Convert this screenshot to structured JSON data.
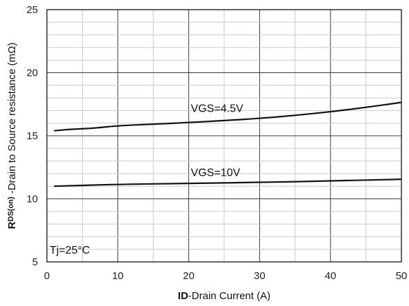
{
  "chart_data": {
    "type": "line",
    "xlabel": {
      "bold": "ID",
      "rest": "-Drain Current (A)"
    },
    "ylabel": {
      "bold": "R",
      "sub": "DS(on)",
      "rest": " -Drain to Source resistance (mΩ)"
    },
    "xlim": [
      0,
      50
    ],
    "ylim": [
      5,
      25
    ],
    "x_ticks": [
      0,
      10,
      20,
      30,
      40,
      50
    ],
    "y_ticks": [
      5,
      10,
      15,
      20,
      25
    ],
    "x_minor_step": 5,
    "y_minor_step": 1,
    "grid": true,
    "condition_text": "Tj=25°C",
    "series": [
      {
        "name": "VGS=4.5V",
        "x": [
          1,
          3,
          5,
          7,
          10,
          15,
          20,
          25,
          30,
          35,
          40,
          45,
          50
        ],
        "y": [
          15.4,
          15.5,
          15.55,
          15.62,
          15.8,
          15.92,
          16.05,
          16.2,
          16.38,
          16.62,
          16.9,
          17.25,
          17.65
        ]
      },
      {
        "name": "VGS=10V",
        "x": [
          1,
          5,
          10,
          20,
          30,
          40,
          50
        ],
        "y": [
          11.0,
          11.07,
          11.15,
          11.22,
          11.3,
          11.42,
          11.55
        ]
      }
    ]
  }
}
